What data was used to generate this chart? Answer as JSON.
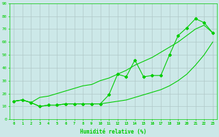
{
  "x": [
    0,
    1,
    2,
    3,
    4,
    5,
    6,
    7,
    8,
    9,
    10,
    11,
    12,
    13,
    14,
    15,
    16,
    17,
    18,
    19,
    20,
    21,
    22,
    23
  ],
  "y_main": [
    14,
    15,
    13,
    10,
    11,
    11,
    12,
    12,
    12,
    12,
    12,
    19,
    35,
    33,
    46,
    33,
    34,
    34,
    50,
    65,
    71,
    78,
    75,
    67
  ],
  "y_upper": [
    14,
    15,
    13,
    17,
    18,
    20,
    22,
    24,
    26,
    27,
    30,
    32,
    35,
    38,
    42,
    45,
    48,
    52,
    56,
    60,
    65,
    70,
    73,
    67
  ],
  "y_lower": [
    14,
    15,
    13,
    10,
    11,
    11,
    12,
    12,
    12,
    12,
    12,
    13,
    14,
    15,
    17,
    19,
    21,
    23,
    26,
    30,
    35,
    42,
    50,
    60
  ],
  "xlabel": "Humidité relative (%)",
  "xlim": [
    -0.5,
    23.5
  ],
  "ylim": [
    0,
    90
  ],
  "yticks": [
    0,
    10,
    20,
    30,
    40,
    50,
    60,
    70,
    80,
    90
  ],
  "xticks": [
    0,
    1,
    2,
    3,
    4,
    5,
    6,
    7,
    8,
    9,
    10,
    11,
    12,
    13,
    14,
    15,
    16,
    17,
    18,
    19,
    20,
    21,
    22,
    23
  ],
  "line_color": "#00cc00",
  "bg_color": "#cce8e8",
  "grid_color": "#b0c8c8",
  "fig_bg": "#cce8e8"
}
